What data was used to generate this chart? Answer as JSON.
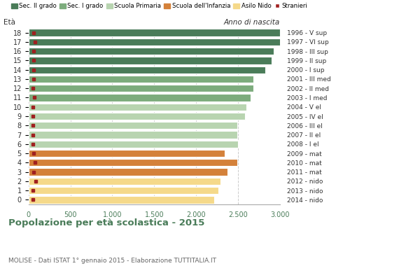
{
  "ages": [
    18,
    17,
    16,
    15,
    14,
    13,
    12,
    11,
    10,
    9,
    8,
    7,
    6,
    5,
    4,
    3,
    2,
    1,
    0
  ],
  "anno_nascita": [
    "1996 - V sup",
    "1997 - VI sup",
    "1998 - III sup",
    "1999 - II sup",
    "2000 - I sup",
    "2001 - III med",
    "2002 - II med",
    "2003 - I med",
    "2004 - V el",
    "2005 - IV el",
    "2006 - III el",
    "2007 - II el",
    "2008 - I el",
    "2009 - mat",
    "2010 - mat",
    "2011 - mat",
    "2012 - nido",
    "2013 - nido",
    "2014 - nido"
  ],
  "bar_values": [
    3000,
    3020,
    2920,
    2900,
    2820,
    2680,
    2680,
    2650,
    2600,
    2580,
    2490,
    2490,
    2500,
    2340,
    2490,
    2370,
    2290,
    2265,
    2210
  ],
  "stranieri": [
    60,
    75,
    65,
    65,
    65,
    60,
    55,
    70,
    50,
    50,
    55,
    50,
    55,
    60,
    75,
    65,
    85,
    55,
    55
  ],
  "bar_colors": [
    "#4a7c59",
    "#4a7c59",
    "#4a7c59",
    "#4a7c59",
    "#4a7c59",
    "#7dac7d",
    "#7dac7d",
    "#7dac7d",
    "#b8d4b0",
    "#b8d4b0",
    "#b8d4b0",
    "#b8d4b0",
    "#b8d4b0",
    "#d4813a",
    "#d4813a",
    "#d4813a",
    "#f5d98a",
    "#f5d98a",
    "#f5d98a"
  ],
  "legend_labels": [
    "Sec. II grado",
    "Sec. I grado",
    "Scuola Primaria",
    "Scuola dell'Infanzia",
    "Asilo Nido",
    "Stranieri"
  ],
  "legend_colors": [
    "#4a7c59",
    "#7dac7d",
    "#b8d4b0",
    "#d4813a",
    "#f5d98a",
    "#a02020"
  ],
  "title": "Popolazione per età scolastica - 2015",
  "subtitle": "MOLISE - Dati ISTAT 1° gennaio 2015 - Elaborazione TUTTITALIA.IT",
  "xlabel_eta": "Età",
  "xlabel_anno": "Anno di nascita",
  "xlim_max": 3000,
  "xtick_values": [
    0,
    500,
    1000,
    1500,
    2000,
    2500,
    3000
  ],
  "xtick_labels": [
    "0",
    "500",
    "1.000",
    "1.500",
    "2.000",
    "2.500",
    "3.000"
  ],
  "bg_color": "#ffffff",
  "bar_height": 0.78,
  "stranieri_color": "#a02020",
  "grid_color": "#cccccc",
  "title_color": "#4a7c59",
  "subtitle_color": "#666666"
}
